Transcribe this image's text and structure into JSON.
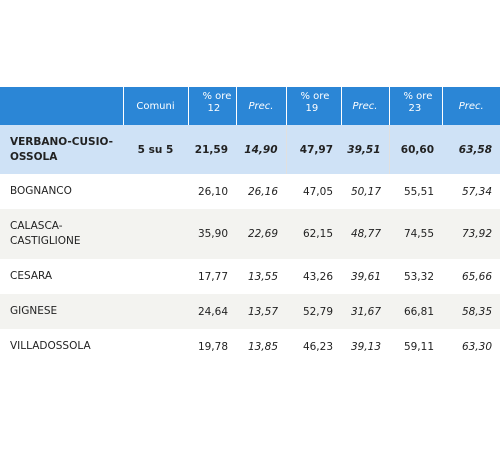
{
  "header": {
    "col1": "Comuni",
    "groups": [
      {
        "label": "% ore",
        "hour": "12",
        "prec": "Prec."
      },
      {
        "label": "% ore",
        "hour": "19",
        "prec": "Prec."
      },
      {
        "label": "% ore",
        "hour": "23",
        "prec": "Prec."
      }
    ]
  },
  "total": {
    "name": "VERBANO-CUSIO-OSSOLA",
    "comuni": "5 su 5",
    "values": [
      "21,59",
      "14,90",
      "47,97",
      "39,51",
      "60,60",
      "63,58"
    ]
  },
  "rows": [
    {
      "name": "BOGNANCO",
      "values": [
        "26,10",
        "26,16",
        "47,05",
        "50,17",
        "55,51",
        "57,34"
      ]
    },
    {
      "name": "CALASCA-CASTIGLIONE",
      "values": [
        "35,90",
        "22,69",
        "62,15",
        "48,77",
        "74,55",
        "73,92"
      ]
    },
    {
      "name": "CESARA",
      "values": [
        "17,77",
        "13,55",
        "43,26",
        "39,61",
        "53,32",
        "65,66"
      ]
    },
    {
      "name": "GIGNESE",
      "values": [
        "24,64",
        "13,57",
        "52,79",
        "31,67",
        "66,81",
        "58,35"
      ]
    },
    {
      "name": "VILLADOSSOLA",
      "values": [
        "19,78",
        "13,85",
        "46,23",
        "39,13",
        "59,11",
        "63,30"
      ]
    }
  ]
}
